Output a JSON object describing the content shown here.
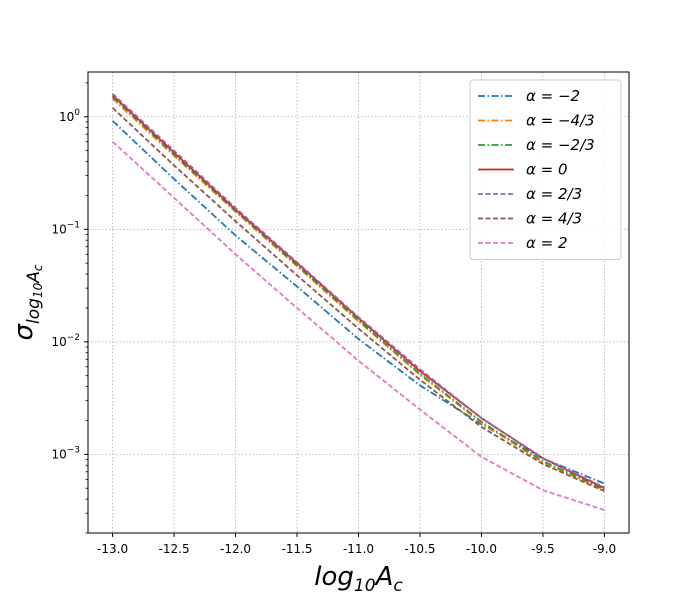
{
  "chart_data": {
    "type": "line",
    "title": "",
    "xlabel": "log10Ac",
    "ylabel": "σlog10Ac",
    "xscale": "linear",
    "yscale": "log",
    "xlim": [
      -13.2,
      -8.8
    ],
    "ylim": [
      0.0002,
      2.5
    ],
    "grid": true,
    "legend_position": "top-right",
    "x_ticks": [
      -13.0,
      -12.5,
      -12.0,
      -11.5,
      -11.0,
      -10.5,
      -10.0,
      -9.5,
      -9.0
    ],
    "x_tick_labels": [
      "-13.0",
      "-12.5",
      "-12.0",
      "-11.5",
      "-11.0",
      "-10.5",
      "-10.0",
      "-9.5",
      "-9.0"
    ],
    "y_ticks": [
      0.001,
      0.01,
      0.1,
      1
    ],
    "y_tick_labels": [
      {
        "base": "10",
        "exp": "−3"
      },
      {
        "base": "10",
        "exp": "−2"
      },
      {
        "base": "10",
        "exp": "−1"
      },
      {
        "base": "10",
        "exp": "0"
      }
    ],
    "x": [
      -13.0,
      -12.5,
      -12.0,
      -11.5,
      -11.0,
      -10.5,
      -10.0,
      -9.5,
      -9.0
    ],
    "series": [
      {
        "name": "α = −2",
        "color": "#1f77b4",
        "dash": "dashdot",
        "values": [
          0.92,
          0.28,
          0.088,
          0.031,
          0.0106,
          0.0041,
          0.00185,
          0.00092,
          0.00055
        ]
      },
      {
        "name": "α = −4/3",
        "color": "#ff7f0e",
        "dash": "dashdot",
        "values": [
          1.45,
          0.45,
          0.143,
          0.047,
          0.0152,
          0.0051,
          0.0019,
          0.00085,
          0.00048
        ]
      },
      {
        "name": "α = −2/3",
        "color": "#2ca02c",
        "dash": "dashdot",
        "values": [
          1.5,
          0.46,
          0.146,
          0.048,
          0.0155,
          0.0052,
          0.00195,
          0.00087,
          0.00049
        ]
      },
      {
        "name": "α = 0",
        "color": "#d62728",
        "dash": "solid",
        "values": [
          1.55,
          0.48,
          0.15,
          0.05,
          0.0162,
          0.0055,
          0.0021,
          0.00092,
          0.0005
        ]
      },
      {
        "name": "α = 2/3",
        "color": "#9467bd",
        "dash": "dashed",
        "values": [
          1.6,
          0.5,
          0.155,
          0.051,
          0.0166,
          0.0057,
          0.0021,
          0.00093,
          0.00051
        ]
      },
      {
        "name": "α = 4/3",
        "color": "#8c564b",
        "dash": "dashed",
        "values": [
          1.2,
          0.37,
          0.118,
          0.039,
          0.0131,
          0.0046,
          0.00175,
          0.00082,
          0.00047
        ]
      },
      {
        "name": "α = 2",
        "color": "#e377c2",
        "dash": "dashed",
        "values": [
          0.6,
          0.19,
          0.06,
          0.02,
          0.0068,
          0.0025,
          0.00095,
          0.00048,
          0.00032
        ]
      }
    ]
  }
}
